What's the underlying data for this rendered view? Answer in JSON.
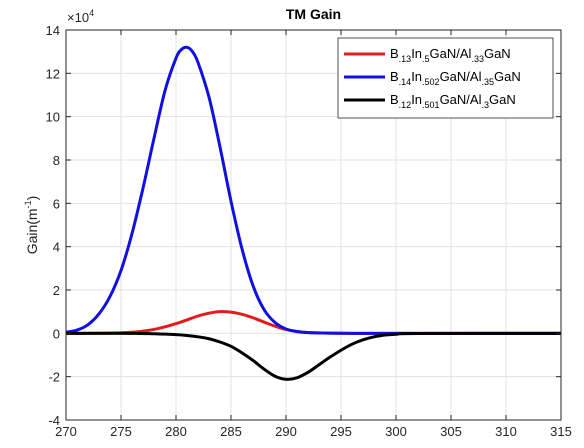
{
  "chart_data": {
    "type": "line",
    "title": "TM Gain",
    "xlabel": "",
    "ylabel": {
      "base": "Gain(m",
      "sup": "-1",
      "tail": ")"
    },
    "y_exponent": {
      "prefix": "×10",
      "power": "4"
    },
    "xlim": [
      270,
      315
    ],
    "ylim": [
      -4,
      14
    ],
    "y_scale_factor": 10000,
    "xticks": [
      270,
      275,
      280,
      285,
      290,
      295,
      300,
      305,
      310,
      315
    ],
    "yticks": [
      -4,
      -2,
      0,
      2,
      4,
      6,
      8,
      10,
      12,
      14
    ],
    "grid": true,
    "legend_position": "top-right",
    "series": [
      {
        "legend": [
          {
            "t": "B",
            "s": false
          },
          {
            "t": ".13",
            "s": true
          },
          {
            "t": "In",
            "s": false
          },
          {
            "t": ".5",
            "s": true
          },
          {
            "t": "GaN/Al",
            "s": false
          },
          {
            "t": ".33",
            "s": true
          },
          {
            "t": "GaN",
            "s": false
          }
        ],
        "color": "#e41a1c",
        "x": [
          270,
          272,
          274,
          276,
          277,
          278,
          279,
          280,
          281,
          282,
          283,
          284,
          285,
          286,
          287,
          288,
          289,
          290,
          291,
          292,
          294,
          296,
          300,
          315
        ],
        "y": [
          0,
          0,
          0.01,
          0.05,
          0.1,
          0.18,
          0.3,
          0.45,
          0.62,
          0.8,
          0.93,
          1.0,
          0.98,
          0.88,
          0.72,
          0.52,
          0.33,
          0.18,
          0.09,
          0.04,
          0.01,
          0,
          0,
          0
        ]
      },
      {
        "legend": [
          {
            "t": "B",
            "s": false
          },
          {
            "t": ".14",
            "s": true
          },
          {
            "t": "In",
            "s": false
          },
          {
            "t": ".502",
            "s": true
          },
          {
            "t": "GaN/Al",
            "s": false
          },
          {
            "t": ".35",
            "s": true
          },
          {
            "t": "GaN",
            "s": false
          }
        ],
        "color": "#1010e0",
        "x": [
          270,
          271,
          272,
          273,
          274,
          275,
          276,
          277,
          278,
          279,
          280,
          280.5,
          281,
          281.5,
          282,
          283,
          284,
          285,
          286,
          287,
          288,
          289,
          290,
          291,
          292,
          294,
          296,
          300,
          315
        ],
        "y": [
          0.05,
          0.15,
          0.4,
          0.9,
          1.7,
          2.9,
          4.6,
          6.7,
          9.0,
          11.2,
          12.7,
          13.1,
          13.2,
          13.0,
          12.5,
          10.9,
          8.6,
          6.1,
          3.9,
          2.2,
          1.1,
          0.5,
          0.2,
          0.08,
          0.03,
          0.01,
          0,
          0,
          0
        ]
      },
      {
        "legend": [
          {
            "t": "B",
            "s": false
          },
          {
            "t": ".12",
            "s": true
          },
          {
            "t": "In",
            "s": false
          },
          {
            "t": ".501",
            "s": true
          },
          {
            "t": "GaN/Al",
            "s": false
          },
          {
            "t": ".3",
            "s": true
          },
          {
            "t": "GaN",
            "s": false
          }
        ],
        "color": "#000000",
        "x": [
          270,
          276,
          278,
          280,
          281,
          282,
          283,
          284,
          285,
          286,
          287,
          288,
          289,
          290,
          291,
          292,
          293,
          294,
          295,
          296,
          297,
          298,
          299,
          300,
          302,
          315
        ],
        "y": [
          0,
          0,
          -0.02,
          -0.06,
          -0.1,
          -0.16,
          -0.25,
          -0.4,
          -0.6,
          -0.9,
          -1.25,
          -1.65,
          -1.98,
          -2.12,
          -2.05,
          -1.8,
          -1.45,
          -1.1,
          -0.78,
          -0.5,
          -0.3,
          -0.16,
          -0.08,
          -0.04,
          -0.01,
          0
        ]
      }
    ]
  }
}
